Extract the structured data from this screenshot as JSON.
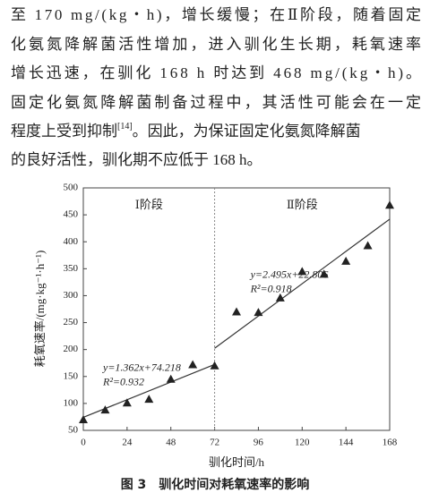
{
  "paragraph": {
    "lines": [
      "至 170 mg/(kg・h)，增长缓慢；在Ⅱ阶段，随着固定",
      "化氨氮降解菌活性增加，进入驯化生长期，耗氧速率",
      "增长迅速，在驯化 168 h 时达到 468 mg/(kg・h)。",
      "固定化氨氮降解菌制备过程中，其活性可能会在一定"
    ],
    "line5": [
      "程度上受到抑制",
      "[14]",
      "。因此，为保证固定化氨氮降解菌"
    ],
    "last": "的良好活性，驯化期不应低于 168 h。"
  },
  "chart_data": {
    "type": "scatter",
    "x": [
      0,
      12,
      24,
      36,
      48,
      60,
      72,
      84,
      96,
      108,
      120,
      132,
      144,
      156,
      168
    ],
    "values": [
      70,
      88,
      101,
      108,
      145,
      172,
      170,
      270,
      269,
      296,
      345,
      340,
      364,
      393,
      468
    ],
    "color": "#222",
    "fits": [
      {
        "x": [
          0,
          72
        ],
        "values": [
          74.2,
          172.3
        ],
        "equation": "y=1.362x+74.218",
        "r2": "R²=0.932"
      },
      {
        "x": [
          72,
          168
        ],
        "values": [
          202.4,
          442.0
        ],
        "equation": "y=2.495x+22.806",
        "r2": "R²=0.918"
      }
    ],
    "phases": [
      "Ⅰ阶段",
      "Ⅱ阶段"
    ],
    "divider": 72,
    "xlim": [
      0,
      168
    ],
    "xticks": [
      0,
      24,
      48,
      72,
      96,
      120,
      144,
      168
    ],
    "ylim": [
      50,
      500
    ],
    "yticks": [
      50,
      100,
      150,
      200,
      250,
      300,
      350,
      400,
      450,
      500
    ],
    "xlabel": "驯化时间/h",
    "ylabel": "耗氧速率/(mg·kg⁻¹·h⁻¹)"
  },
  "caption": "图 3　驯化时间对耗氧速率的影响"
}
